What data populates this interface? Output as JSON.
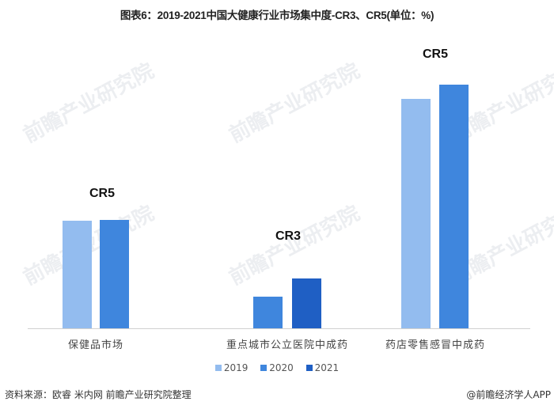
{
  "title": "图表6：2019-2021中国大健康行业市场集中度-CR3、CR5(单位：%)",
  "chart_data": {
    "type": "bar",
    "title": "图表6：2019-2021中国大健康行业市场集中度-CR3、CR5(单位：%)",
    "xlabel": "",
    "ylabel": "",
    "unit": "%",
    "grid": false,
    "legend_position": "bottom",
    "categories": [
      "保健品市场",
      "重点城市公立医院中成药",
      "药店零售感冒中成药"
    ],
    "group_labels": [
      "CR5",
      "CR3",
      "CR5"
    ],
    "series": [
      {
        "name": "2019",
        "color": "#93bcef",
        "values": [
          136,
          null,
          290
        ]
      },
      {
        "name": "2020",
        "color": "#3f86dd",
        "values": [
          137,
          40,
          308
        ]
      },
      {
        "name": "2021",
        "color": "#1f5fc4",
        "values": [
          null,
          63,
          null
        ]
      }
    ],
    "note": "No value axis shown; values are relative bar heights in pixels"
  },
  "legend": [
    {
      "label": "2019",
      "color": "#93bcef"
    },
    {
      "label": "2020",
      "color": "#3f86dd"
    },
    {
      "label": "2021",
      "color": "#1f5fc4"
    }
  ],
  "footer": {
    "source": "资料来源：欧睿 米内网 前瞻产业研究院整理",
    "credit": "@前瞻经济学人APP"
  },
  "watermark": "前瞻产业研究院"
}
